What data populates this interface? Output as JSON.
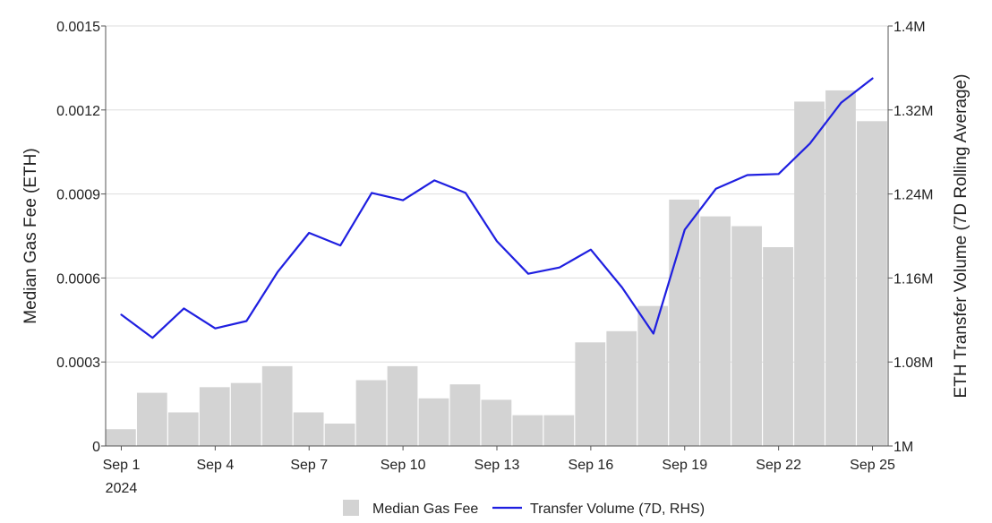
{
  "chart_data": {
    "type": "bar+line",
    "categories": [
      "Sep 1",
      "Sep 2",
      "Sep 3",
      "Sep 4",
      "Sep 5",
      "Sep 6",
      "Sep 7",
      "Sep 8",
      "Sep 9",
      "Sep 10",
      "Sep 11",
      "Sep 12",
      "Sep 13",
      "Sep 14",
      "Sep 15",
      "Sep 16",
      "Sep 17",
      "Sep 18",
      "Sep 19",
      "Sep 20",
      "Sep 21",
      "Sep 22",
      "Sep 23",
      "Sep 24",
      "Sep 25"
    ],
    "x_tick_labels": [
      "Sep 1",
      "Sep 4",
      "Sep 7",
      "Sep 10",
      "Sep 13",
      "Sep 16",
      "Sep 19",
      "Sep 22",
      "Sep 25"
    ],
    "x_tick_indices": [
      0,
      3,
      6,
      9,
      12,
      15,
      18,
      21,
      24
    ],
    "x_sublabel": "2024",
    "series": [
      {
        "name": "Median Gas Fee",
        "type": "bar",
        "axis": "left",
        "color": "#d3d3d3",
        "values": [
          6e-05,
          0.00019,
          0.00012,
          0.00021,
          0.000225,
          0.000285,
          0.00012,
          8e-05,
          0.000235,
          0.000285,
          0.00017,
          0.00022,
          0.000165,
          0.00011,
          0.00011,
          0.00037,
          0.00041,
          0.0005,
          0.00088,
          0.00082,
          0.000785,
          0.00071,
          0.00123,
          0.00127,
          0.00116
        ]
      },
      {
        "name": "Transfer Volume (7D, RHS)",
        "type": "line",
        "axis": "right",
        "color": "#1f1fe0",
        "values": [
          1125000,
          1103000,
          1131000,
          1112000,
          1119000,
          1166000,
          1203000,
          1191000,
          1241000,
          1234000,
          1253000,
          1241000,
          1195000,
          1164000,
          1170000,
          1187000,
          1151000,
          1107000,
          1206000,
          1245000,
          1258000,
          1259000,
          1288000,
          1327000,
          1350000
        ]
      }
    ],
    "y_left": {
      "label": "Median Gas Fee (ETH)",
      "ylim": [
        0,
        0.0015
      ],
      "ticks": [
        0,
        0.0003,
        0.0006,
        0.0009,
        0.0012,
        0.0015
      ],
      "tick_labels": [
        "0",
        "0.0003",
        "0.0006",
        "0.0009",
        "0.0012",
        "0.0015"
      ]
    },
    "y_right": {
      "label": "ETH Transfer Volume (7D Rolling Average)",
      "ylim": [
        1000000,
        1400000
      ],
      "ticks": [
        1000000,
        1080000,
        1160000,
        1240000,
        1320000,
        1400000
      ],
      "tick_labels": [
        "1M",
        "1.08M",
        "1.16M",
        "1.24M",
        "1.32M",
        "1.4M"
      ]
    },
    "grid": true,
    "legend_position": "bottom"
  }
}
